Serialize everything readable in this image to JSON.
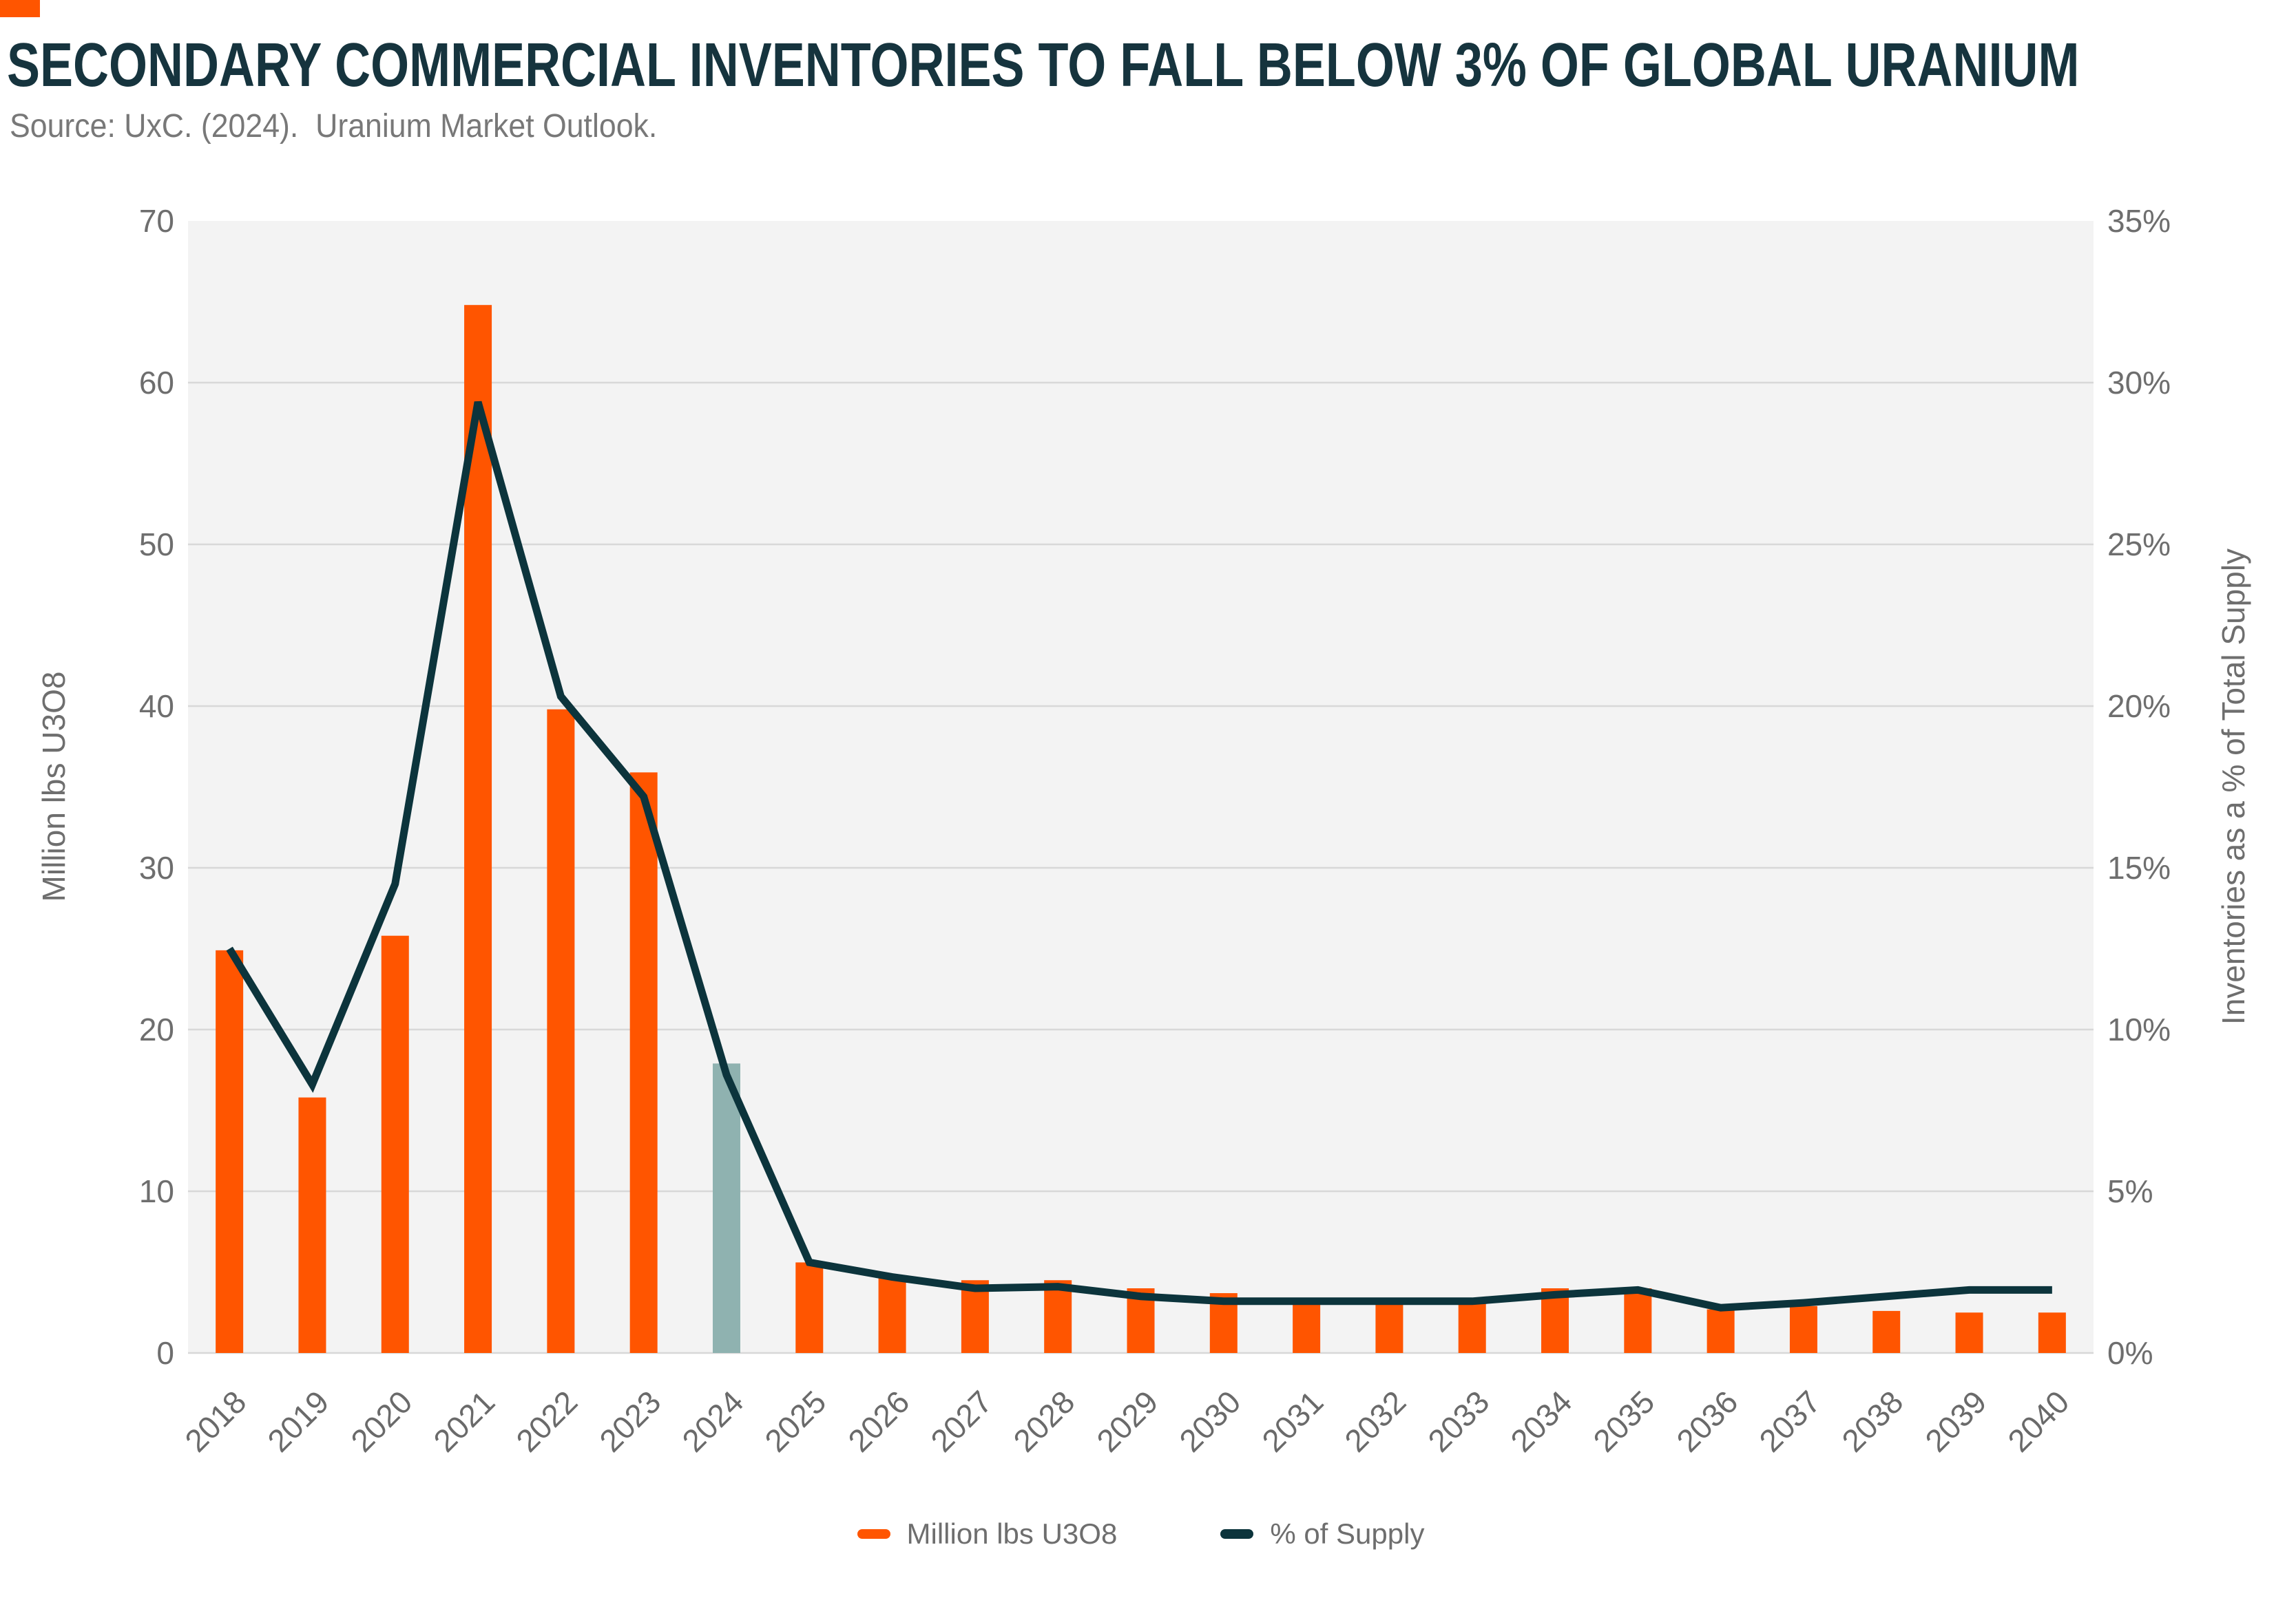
{
  "header": {
    "source_note": "Source: UxC. (2024).  Uranium Market Outlook."
  },
  "accent": {
    "brand_rect_color": "#FF5500"
  },
  "chart_data": {
    "type": "bar+line combo",
    "title": "SECONDARY COMMERCIAL INVENTORIES TO FALL BELOW 3% OF GLOBAL URANIUM",
    "categories": [
      "2018",
      "2019",
      "2020",
      "2021",
      "2022",
      "2023",
      "2024",
      "2025",
      "2026",
      "2027",
      "2028",
      "2029",
      "2030",
      "2031",
      "2032",
      "2033",
      "2034",
      "2035",
      "2036",
      "2037",
      "2038",
      "2039",
      "2040"
    ],
    "series": [
      {
        "name": "Million lbs U3O8",
        "type": "bar",
        "axis": "left",
        "color": "#FF5500",
        "highlight_category": "2024",
        "highlight_color": "#8FB2B0",
        "values": [
          24.9,
          15.8,
          25.8,
          64.8,
          39.8,
          35.9,
          17.9,
          5.6,
          4.8,
          4.5,
          4.5,
          4.0,
          3.7,
          3.3,
          3.3,
          3.3,
          4.0,
          4.0,
          2.7,
          2.9,
          2.6,
          2.5,
          2.5
        ]
      },
      {
        "name": "% of Supply",
        "type": "line",
        "axis": "right",
        "color": "#0C343C",
        "values": [
          12.5,
          8.3,
          14.5,
          29.4,
          20.3,
          17.2,
          8.6,
          2.8,
          2.35,
          2.0,
          2.05,
          1.75,
          1.6,
          1.6,
          1.6,
          1.6,
          1.8,
          1.95,
          1.4,
          1.55,
          1.75,
          1.95,
          1.95
        ]
      }
    ],
    "left_axis": {
      "title": "Million lbs U3O8",
      "min": 0,
      "max": 70,
      "tick_step": 10,
      "tick_labels": [
        "0",
        "10",
        "20",
        "30",
        "40",
        "50",
        "60",
        "70"
      ]
    },
    "right_axis": {
      "title": "Inventories as a % of Total Supply",
      "min": 0,
      "max": 35,
      "tick_step": 5,
      "tick_labels": [
        "0%",
        "5%",
        "10%",
        "15%",
        "20%",
        "25%",
        "30%",
        "35%"
      ]
    },
    "grid": "horizontal",
    "gridline_color": "#D8D8D8",
    "plot_background": "#F3F3F3",
    "legend_position": "bottom"
  },
  "legend": {
    "items": [
      {
        "label": "Million lbs U3O8",
        "color": "#FF5500"
      },
      {
        "label": "% of Supply",
        "color": "#0C343C"
      }
    ]
  }
}
